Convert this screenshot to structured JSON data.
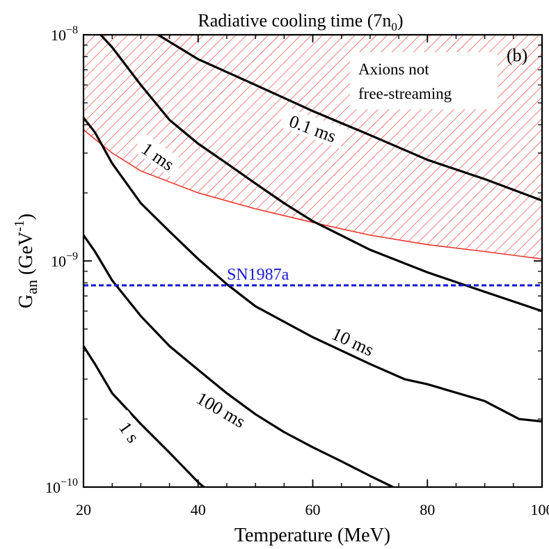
{
  "chart_data": {
    "type": "line",
    "title": "Radiative cooling time (7n",
    "title_sub": "0",
    "title_end": ")",
    "panel_label": "(b)",
    "xlabel": "Temperature (MeV)",
    "ylabel_main": "G",
    "ylabel_sub": "an",
    "ylabel_unit": " (GeV",
    "ylabel_sup": "-1",
    "ylabel_close": ")",
    "xlim": [
      20,
      100
    ],
    "ylim": [
      1e-10,
      1e-08
    ],
    "y_scale": "log",
    "x_ticks": [
      20,
      40,
      60,
      80,
      100
    ],
    "x_tick_labels": [
      "20",
      "40",
      "60",
      "80",
      "100"
    ],
    "y_ticks": [
      {
        "value": 1e-08,
        "mantissa": "10",
        "exponent": "−8"
      },
      {
        "value": 1e-09,
        "mantissa": "10",
        "exponent": "−9"
      },
      {
        "value": 1e-10,
        "mantissa": "10",
        "exponent": "−10"
      }
    ],
    "region": {
      "label_line1": "Axions not",
      "label_line2": "free-streaming",
      "color": "#e8372c",
      "boundary": [
        [
          20,
          3.8e-09
        ],
        [
          25,
          3e-09
        ],
        [
          30,
          2.5e-09
        ],
        [
          40,
          2e-09
        ],
        [
          50,
          1.7e-09
        ],
        [
          60,
          1.48e-09
        ],
        [
          70,
          1.3e-09
        ],
        [
          80,
          1.18e-09
        ],
        [
          90,
          1.1e-09
        ],
        [
          100,
          1.02e-09
        ]
      ]
    },
    "reference_line": {
      "label": "SN1987a",
      "value": 7.8e-10,
      "color": "#1a1ad6"
    },
    "series": [
      {
        "label": "0.1 ms",
        "label_at": [
          60,
          3.85e-09
        ],
        "label_angle": 20,
        "points": [
          [
            33,
            1e-08
          ],
          [
            40,
            7.8e-09
          ],
          [
            50,
            6e-09
          ],
          [
            60,
            4.6e-09
          ],
          [
            70,
            3.6e-09
          ],
          [
            80,
            2.8e-09
          ],
          [
            90,
            2.3e-09
          ],
          [
            100,
            1.85e-09
          ]
        ]
      },
      {
        "label": "1 ms",
        "label_at": [
          33,
          2.9e-09
        ],
        "label_angle": 35,
        "points": [
          [
            23,
            1e-08
          ],
          [
            25,
            8.8e-09
          ],
          [
            30,
            6e-09
          ],
          [
            35,
            4.2e-09
          ],
          [
            40,
            3.3e-09
          ],
          [
            45,
            2.7e-09
          ],
          [
            50,
            2.2e-09
          ],
          [
            55,
            1.8e-09
          ],
          [
            60,
            1.5e-09
          ],
          [
            70,
            1.12e-09
          ],
          [
            80,
            8.9e-10
          ],
          [
            90,
            7.3e-10
          ],
          [
            100,
            6e-10
          ]
        ]
      },
      {
        "label": "10 ms",
        "label_at": [
          67,
          4.4e-10
        ],
        "label_angle": 25,
        "points": [
          [
            20,
            4.3e-09
          ],
          [
            22,
            3.7e-09
          ],
          [
            25,
            2.7e-09
          ],
          [
            30,
            1.8e-09
          ],
          [
            35,
            1.35e-09
          ],
          [
            40,
            1.02e-09
          ],
          [
            45,
            7.9e-10
          ],
          [
            50,
            6.3e-10
          ],
          [
            60,
            4.6e-10
          ],
          [
            70,
            3.5e-10
          ],
          [
            76,
            3e-10
          ],
          [
            80,
            2.85e-10
          ],
          [
            90,
            2.4e-10
          ],
          [
            96,
            2e-10
          ],
          [
            100,
            1.95e-10
          ]
        ]
      },
      {
        "label": "100 ms",
        "label_at": [
          44,
          2.2e-10
        ],
        "label_angle": 30,
        "points": [
          [
            20,
            1.3e-09
          ],
          [
            22,
            1.1e-09
          ],
          [
            25,
            8.2e-10
          ],
          [
            30,
            5.7e-10
          ],
          [
            35,
            4.2e-10
          ],
          [
            40,
            3.3e-10
          ],
          [
            45,
            2.6e-10
          ],
          [
            50,
            2.1e-10
          ],
          [
            55,
            1.75e-10
          ],
          [
            60,
            1.5e-10
          ],
          [
            65,
            1.3e-10
          ],
          [
            70,
            1.12e-10
          ],
          [
            74,
            1e-10
          ]
        ]
      },
      {
        "label": "1 s",
        "label_at": [
          28,
          1.75e-10
        ],
        "label_angle": 55,
        "points": [
          [
            20,
            4.2e-10
          ],
          [
            22,
            3.5e-10
          ],
          [
            25,
            2.6e-10
          ],
          [
            30,
            1.9e-10
          ],
          [
            35,
            1.42e-10
          ],
          [
            40,
            1.05e-10
          ],
          [
            41,
            1e-10
          ]
        ]
      }
    ]
  }
}
